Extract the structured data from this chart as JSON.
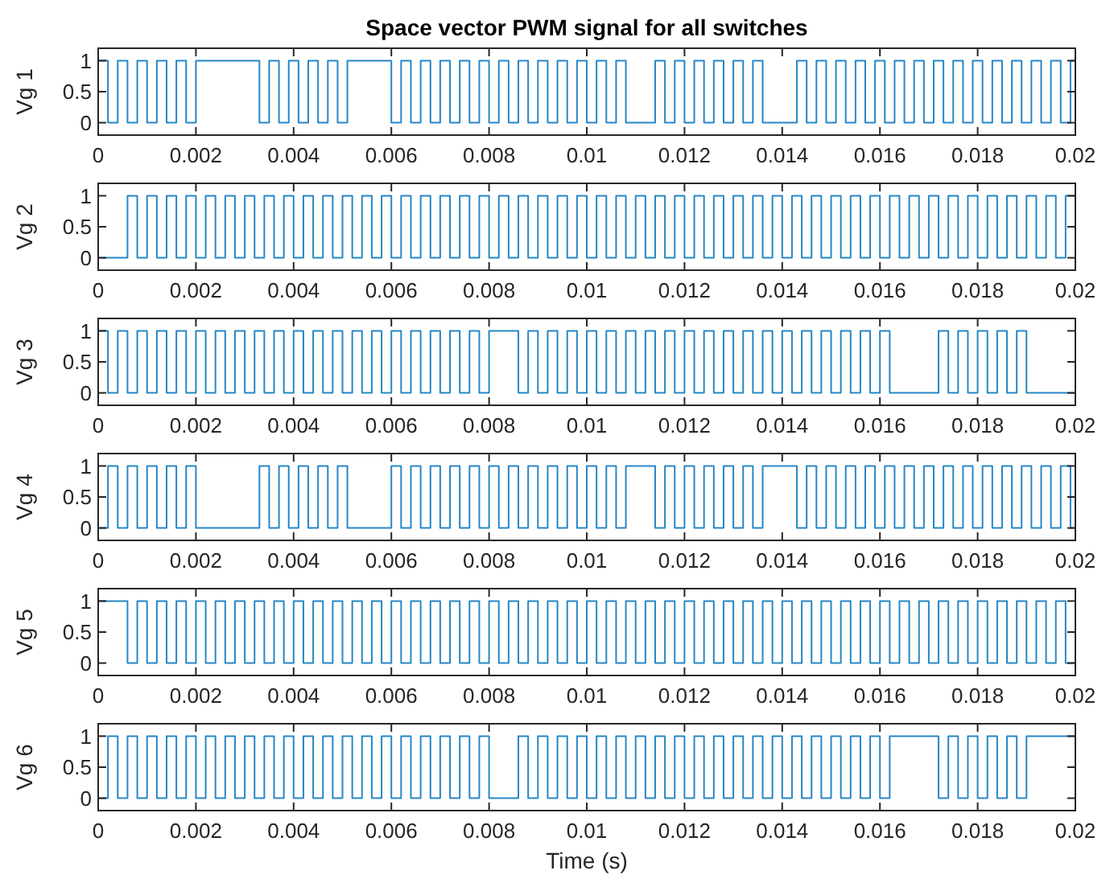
{
  "chart_data": [
    {
      "type": "step",
      "title": "Space vector PWM signal for all switches",
      "ylabel": "Vg 1",
      "xlim": [
        0,
        0.02
      ],
      "xticks": [
        0,
        0.002,
        0.004,
        0.006,
        0.008,
        0.01,
        0.012,
        0.014,
        0.016,
        0.018,
        0.02
      ],
      "ylim": [
        -0.2,
        1.2
      ],
      "yticks": [
        0,
        0.5,
        1
      ],
      "grid": false,
      "series": [
        {
          "color": "#0072bd",
          "x": [
            0,
            0.0002,
            0.0004,
            0.0006,
            0.0008,
            0.001,
            0.0012,
            0.0014,
            0.0016,
            0.0018,
            0.002,
            0.0033,
            0.0035,
            0.0037,
            0.0039,
            0.0041,
            0.0043,
            0.0045,
            0.0047,
            0.0049,
            0.0051,
            0.006,
            0.0062,
            0.0064,
            0.0066,
            0.0068,
            0.007,
            0.0072,
            0.0074,
            0.0076,
            0.0078,
            0.008,
            0.0082,
            0.0084,
            0.0086,
            0.0088,
            0.009,
            0.0092,
            0.0094,
            0.0096,
            0.0098,
            0.01,
            0.0102,
            0.0104,
            0.0106,
            0.0108,
            0.0114,
            0.0116,
            0.0118,
            0.012,
            0.0122,
            0.0124,
            0.0126,
            0.0128,
            0.013,
            0.0132,
            0.0134,
            0.0136,
            0.0143,
            0.0145,
            0.0147,
            0.0149,
            0.0151,
            0.0153,
            0.0155,
            0.0157,
            0.0159,
            0.0161,
            0.0163,
            0.0165,
            0.0167,
            0.0169,
            0.0171,
            0.0173,
            0.0175,
            0.0177,
            0.0179,
            0.0181,
            0.0183,
            0.0185,
            0.0187,
            0.0189,
            0.0191,
            0.0193,
            0.0195,
            0.0197,
            0.0199,
            0.02
          ],
          "values": [
            1,
            0,
            1,
            0,
            1,
            0,
            1,
            0,
            1,
            0,
            1,
            0,
            1,
            0,
            1,
            0,
            1,
            0,
            1,
            0,
            1,
            0,
            1,
            0,
            1,
            0,
            1,
            0,
            1,
            0,
            1,
            0,
            1,
            0,
            1,
            0,
            1,
            0,
            1,
            0,
            1,
            0,
            1,
            0,
            1,
            0,
            1,
            0,
            1,
            0,
            1,
            0,
            1,
            0,
            1,
            0,
            1,
            0,
            1,
            0,
            1,
            0,
            1,
            0,
            1,
            0,
            1,
            0,
            1,
            0,
            1,
            0,
            1,
            0,
            1,
            0,
            1,
            0,
            1,
            0,
            1,
            0,
            1,
            0,
            1,
            0,
            1,
            1
          ]
        }
      ]
    },
    {
      "type": "step",
      "ylabel": "Vg 2",
      "xlim": [
        0,
        0.02
      ],
      "xticks": [
        0,
        0.002,
        0.004,
        0.006,
        0.008,
        0.01,
        0.012,
        0.014,
        0.016,
        0.018,
        0.02
      ],
      "ylim": [
        -0.2,
        1.2
      ],
      "yticks": [
        0,
        0.5,
        1
      ],
      "grid": false,
      "series": [
        {
          "color": "#0072bd",
          "x": [
            0,
            0.0006,
            0.0008,
            0.001,
            0.0012,
            0.0014,
            0.0016,
            0.0018,
            0.002,
            0.0022,
            0.0024,
            0.0026,
            0.0028,
            0.003,
            0.0032,
            0.0034,
            0.0036,
            0.0038,
            0.004,
            0.0042,
            0.0044,
            0.0046,
            0.0048,
            0.005,
            0.0052,
            0.0054,
            0.0056,
            0.0058,
            0.006,
            0.0062,
            0.0064,
            0.0066,
            0.0068,
            0.007,
            0.0072,
            0.0074,
            0.0076,
            0.0078,
            0.008,
            0.0082,
            0.0084,
            0.0086,
            0.0088,
            0.009,
            0.0092,
            0.0094,
            0.0096,
            0.0098,
            0.01,
            0.0102,
            0.0104,
            0.0106,
            0.0108,
            0.011,
            0.0112,
            0.0114,
            0.0116,
            0.0118,
            0.012,
            0.0122,
            0.0124,
            0.0126,
            0.0128,
            0.013,
            0.0132,
            0.0134,
            0.0136,
            0.0138,
            0.014,
            0.0142,
            0.0144,
            0.0146,
            0.0148,
            0.015,
            0.0152,
            0.0154,
            0.0156,
            0.0158,
            0.016,
            0.0162,
            0.0164,
            0.0166,
            0.0168,
            0.017,
            0.0172,
            0.0174,
            0.0176,
            0.0178,
            0.018,
            0.0182,
            0.0184,
            0.0186,
            0.0188,
            0.019,
            0.0192,
            0.0194,
            0.0196,
            0.0198,
            0.02
          ],
          "values": [
            0,
            1,
            0,
            1,
            0,
            1,
            0,
            1,
            0,
            1,
            0,
            1,
            0,
            1,
            0,
            1,
            0,
            1,
            0,
            1,
            0,
            1,
            0,
            1,
            0,
            1,
            0,
            1,
            0,
            1,
            0,
            1,
            0,
            1,
            0,
            1,
            0,
            1,
            0,
            1,
            0,
            1,
            0,
            1,
            0,
            1,
            0,
            1,
            0,
            1,
            0,
            1,
            0,
            1,
            0,
            1,
            0,
            1,
            0,
            1,
            0,
            1,
            0,
            1,
            0,
            1,
            0,
            1,
            0,
            1,
            0,
            1,
            0,
            1,
            0,
            1,
            0,
            1,
            0,
            1,
            0,
            1,
            0,
            1,
            0,
            1,
            0,
            1,
            0,
            1,
            0,
            1,
            0,
            1,
            0,
            1,
            0,
            1,
            0
          ]
        }
      ]
    },
    {
      "type": "step",
      "ylabel": "Vg 3",
      "xlim": [
        0,
        0.02
      ],
      "xticks": [
        0,
        0.002,
        0.004,
        0.006,
        0.008,
        0.01,
        0.012,
        0.014,
        0.016,
        0.018,
        0.02
      ],
      "ylim": [
        -0.2,
        1.2
      ],
      "yticks": [
        0,
        0.5,
        1
      ],
      "grid": false,
      "series": [
        {
          "color": "#0072bd",
          "x": [
            0,
            0.0002,
            0.0004,
            0.0006,
            0.0008,
            0.001,
            0.0012,
            0.0014,
            0.0016,
            0.0018,
            0.002,
            0.0022,
            0.0024,
            0.0026,
            0.0028,
            0.003,
            0.0032,
            0.0034,
            0.0036,
            0.0038,
            0.004,
            0.0042,
            0.0044,
            0.0046,
            0.0048,
            0.005,
            0.0052,
            0.0054,
            0.0056,
            0.0058,
            0.006,
            0.0062,
            0.0064,
            0.0066,
            0.0068,
            0.007,
            0.0072,
            0.0074,
            0.0076,
            0.0078,
            0.008,
            0.0086,
            0.0088,
            0.009,
            0.0092,
            0.0094,
            0.0096,
            0.0098,
            0.01,
            0.0102,
            0.0104,
            0.0106,
            0.0108,
            0.011,
            0.0112,
            0.0114,
            0.0116,
            0.0118,
            0.012,
            0.0122,
            0.0124,
            0.0126,
            0.0128,
            0.013,
            0.0132,
            0.0134,
            0.0136,
            0.0138,
            0.014,
            0.0142,
            0.0144,
            0.0146,
            0.0148,
            0.015,
            0.0152,
            0.0154,
            0.0156,
            0.0158,
            0.016,
            0.0162,
            0.0172,
            0.0174,
            0.0176,
            0.0178,
            0.018,
            0.0182,
            0.0184,
            0.0186,
            0.0188,
            0.019,
            0.02
          ],
          "values": [
            1,
            0,
            1,
            0,
            1,
            0,
            1,
            0,
            1,
            0,
            1,
            0,
            1,
            0,
            1,
            0,
            1,
            0,
            1,
            0,
            1,
            0,
            1,
            0,
            1,
            0,
            1,
            0,
            1,
            0,
            1,
            0,
            1,
            0,
            1,
            0,
            1,
            0,
            1,
            0,
            1,
            0,
            1,
            0,
            1,
            0,
            1,
            0,
            1,
            0,
            1,
            0,
            1,
            0,
            1,
            0,
            1,
            0,
            1,
            0,
            1,
            0,
            1,
            0,
            1,
            0,
            1,
            0,
            1,
            0,
            1,
            0,
            1,
            0,
            1,
            0,
            1,
            0,
            1,
            0,
            1,
            0,
            1,
            0,
            1,
            0,
            1,
            0,
            1,
            0,
            0
          ]
        }
      ]
    },
    {
      "type": "step",
      "ylabel": "Vg 4",
      "xlim": [
        0,
        0.02
      ],
      "xticks": [
        0,
        0.002,
        0.004,
        0.006,
        0.008,
        0.01,
        0.012,
        0.014,
        0.016,
        0.018,
        0.02
      ],
      "ylim": [
        -0.2,
        1.2
      ],
      "yticks": [
        0,
        0.5,
        1
      ],
      "grid": false,
      "series": [
        {
          "color": "#0072bd",
          "x": [
            0,
            0.0002,
            0.0004,
            0.0006,
            0.0008,
            0.001,
            0.0012,
            0.0014,
            0.0016,
            0.0018,
            0.002,
            0.0033,
            0.0035,
            0.0037,
            0.0039,
            0.0041,
            0.0043,
            0.0045,
            0.0047,
            0.0049,
            0.0051,
            0.006,
            0.0062,
            0.0064,
            0.0066,
            0.0068,
            0.007,
            0.0072,
            0.0074,
            0.0076,
            0.0078,
            0.008,
            0.0082,
            0.0084,
            0.0086,
            0.0088,
            0.009,
            0.0092,
            0.0094,
            0.0096,
            0.0098,
            0.01,
            0.0102,
            0.0104,
            0.0106,
            0.0108,
            0.0114,
            0.0116,
            0.0118,
            0.012,
            0.0122,
            0.0124,
            0.0126,
            0.0128,
            0.013,
            0.0132,
            0.0134,
            0.0136,
            0.0143,
            0.0145,
            0.0147,
            0.0149,
            0.0151,
            0.0153,
            0.0155,
            0.0157,
            0.0159,
            0.0161,
            0.0163,
            0.0165,
            0.0167,
            0.0169,
            0.0171,
            0.0173,
            0.0175,
            0.0177,
            0.0179,
            0.0181,
            0.0183,
            0.0185,
            0.0187,
            0.0189,
            0.0191,
            0.0193,
            0.0195,
            0.0197,
            0.0199,
            0.02
          ],
          "values": [
            0,
            1,
            0,
            1,
            0,
            1,
            0,
            1,
            0,
            1,
            0,
            1,
            0,
            1,
            0,
            1,
            0,
            1,
            0,
            1,
            0,
            1,
            0,
            1,
            0,
            1,
            0,
            1,
            0,
            1,
            0,
            1,
            0,
            1,
            0,
            1,
            0,
            1,
            0,
            1,
            0,
            1,
            0,
            1,
            0,
            1,
            0,
            1,
            0,
            1,
            0,
            1,
            0,
            1,
            0,
            1,
            0,
            1,
            0,
            1,
            0,
            1,
            0,
            1,
            0,
            1,
            0,
            1,
            0,
            1,
            0,
            1,
            0,
            1,
            0,
            1,
            0,
            1,
            0,
            1,
            0,
            1,
            0,
            1,
            0,
            1,
            0,
            0
          ]
        }
      ]
    },
    {
      "type": "step",
      "ylabel": "Vg 5",
      "xlim": [
        0,
        0.02
      ],
      "xticks": [
        0,
        0.002,
        0.004,
        0.006,
        0.008,
        0.01,
        0.012,
        0.014,
        0.016,
        0.018,
        0.02
      ],
      "ylim": [
        -0.2,
        1.2
      ],
      "yticks": [
        0,
        0.5,
        1
      ],
      "grid": false,
      "series": [
        {
          "color": "#0072bd",
          "x": [
            0,
            0.0006,
            0.0008,
            0.001,
            0.0012,
            0.0014,
            0.0016,
            0.0018,
            0.002,
            0.0022,
            0.0024,
            0.0026,
            0.0028,
            0.003,
            0.0032,
            0.0034,
            0.0036,
            0.0038,
            0.004,
            0.0042,
            0.0044,
            0.0046,
            0.0048,
            0.005,
            0.0052,
            0.0054,
            0.0056,
            0.0058,
            0.006,
            0.0062,
            0.0064,
            0.0066,
            0.0068,
            0.007,
            0.0072,
            0.0074,
            0.0076,
            0.0078,
            0.008,
            0.0082,
            0.0084,
            0.0086,
            0.0088,
            0.009,
            0.0092,
            0.0094,
            0.0096,
            0.0098,
            0.01,
            0.0102,
            0.0104,
            0.0106,
            0.0108,
            0.011,
            0.0112,
            0.0114,
            0.0116,
            0.0118,
            0.012,
            0.0122,
            0.0124,
            0.0126,
            0.0128,
            0.013,
            0.0132,
            0.0134,
            0.0136,
            0.0138,
            0.014,
            0.0142,
            0.0144,
            0.0146,
            0.0148,
            0.015,
            0.0152,
            0.0154,
            0.0156,
            0.0158,
            0.016,
            0.0162,
            0.0164,
            0.0166,
            0.0168,
            0.017,
            0.0172,
            0.0174,
            0.0176,
            0.0178,
            0.018,
            0.0182,
            0.0184,
            0.0186,
            0.0188,
            0.019,
            0.0192,
            0.0194,
            0.0196,
            0.0198,
            0.02
          ],
          "values": [
            1,
            0,
            1,
            0,
            1,
            0,
            1,
            0,
            1,
            0,
            1,
            0,
            1,
            0,
            1,
            0,
            1,
            0,
            1,
            0,
            1,
            0,
            1,
            0,
            1,
            0,
            1,
            0,
            1,
            0,
            1,
            0,
            1,
            0,
            1,
            0,
            1,
            0,
            1,
            0,
            1,
            0,
            1,
            0,
            1,
            0,
            1,
            0,
            1,
            0,
            1,
            0,
            1,
            0,
            1,
            0,
            1,
            0,
            1,
            0,
            1,
            0,
            1,
            0,
            1,
            0,
            1,
            0,
            1,
            0,
            1,
            0,
            1,
            0,
            1,
            0,
            1,
            0,
            1,
            0,
            1,
            0,
            1,
            0,
            1,
            0,
            1,
            0,
            1,
            0,
            1,
            0,
            1,
            0,
            1,
            0,
            1,
            0,
            1
          ]
        }
      ]
    },
    {
      "type": "step",
      "ylabel": "Vg 6",
      "xlabel": "Time (s)",
      "xlim": [
        0,
        0.02
      ],
      "xticks": [
        0,
        0.002,
        0.004,
        0.006,
        0.008,
        0.01,
        0.012,
        0.014,
        0.016,
        0.018,
        0.02
      ],
      "ylim": [
        -0.2,
        1.2
      ],
      "yticks": [
        0,
        0.5,
        1
      ],
      "grid": false,
      "series": [
        {
          "color": "#0072bd",
          "x": [
            0,
            0.0002,
            0.0004,
            0.0006,
            0.0008,
            0.001,
            0.0012,
            0.0014,
            0.0016,
            0.0018,
            0.002,
            0.0022,
            0.0024,
            0.0026,
            0.0028,
            0.003,
            0.0032,
            0.0034,
            0.0036,
            0.0038,
            0.004,
            0.0042,
            0.0044,
            0.0046,
            0.0048,
            0.005,
            0.0052,
            0.0054,
            0.0056,
            0.0058,
            0.006,
            0.0062,
            0.0064,
            0.0066,
            0.0068,
            0.007,
            0.0072,
            0.0074,
            0.0076,
            0.0078,
            0.008,
            0.0086,
            0.0088,
            0.009,
            0.0092,
            0.0094,
            0.0096,
            0.0098,
            0.01,
            0.0102,
            0.0104,
            0.0106,
            0.0108,
            0.011,
            0.0112,
            0.0114,
            0.0116,
            0.0118,
            0.012,
            0.0122,
            0.0124,
            0.0126,
            0.0128,
            0.013,
            0.0132,
            0.0134,
            0.0136,
            0.0138,
            0.014,
            0.0142,
            0.0144,
            0.0146,
            0.0148,
            0.015,
            0.0152,
            0.0154,
            0.0156,
            0.0158,
            0.016,
            0.0162,
            0.0172,
            0.0174,
            0.0176,
            0.0178,
            0.018,
            0.0182,
            0.0184,
            0.0186,
            0.0188,
            0.019,
            0.02
          ],
          "values": [
            0,
            1,
            0,
            1,
            0,
            1,
            0,
            1,
            0,
            1,
            0,
            1,
            0,
            1,
            0,
            1,
            0,
            1,
            0,
            1,
            0,
            1,
            0,
            1,
            0,
            1,
            0,
            1,
            0,
            1,
            0,
            1,
            0,
            1,
            0,
            1,
            0,
            1,
            0,
            1,
            0,
            1,
            0,
            1,
            0,
            1,
            0,
            1,
            0,
            1,
            0,
            1,
            0,
            1,
            0,
            1,
            0,
            1,
            0,
            1,
            0,
            1,
            0,
            1,
            0,
            1,
            0,
            1,
            0,
            1,
            0,
            1,
            0,
            1,
            0,
            1,
            0,
            1,
            0,
            1,
            0,
            1,
            0,
            1,
            0,
            1,
            0,
            1,
            0,
            1,
            1
          ]
        }
      ]
    }
  ]
}
